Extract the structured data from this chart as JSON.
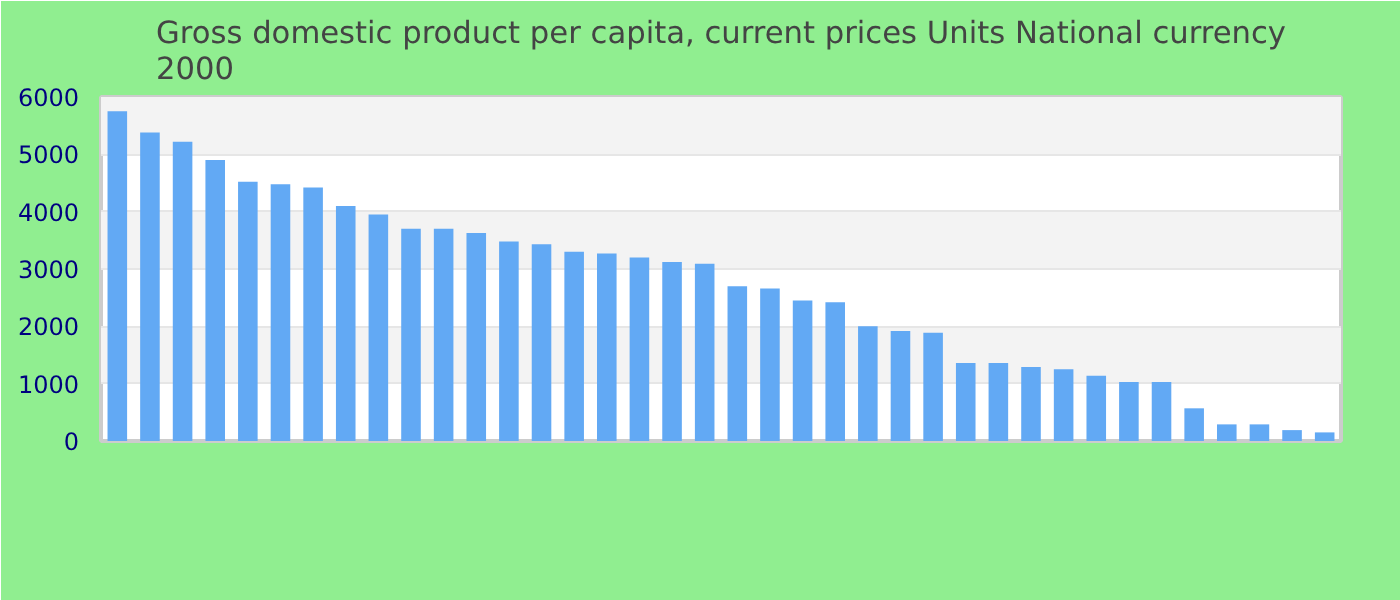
{
  "chart_data": {
    "type": "bar",
    "title": "Gross domestic product per capita, current prices Units National currency\n2000",
    "categories": [
      null,
      null,
      null,
      null,
      null,
      null,
      null,
      null,
      null,
      null,
      null,
      null,
      null,
      null,
      null,
      null,
      null,
      null,
      null,
      null,
      null,
      null,
      null,
      null,
      null,
      null,
      null,
      null,
      null,
      null,
      null,
      null,
      null,
      null,
      null,
      null,
      null,
      null
    ],
    "values": [
      5750,
      5380,
      5220,
      4900,
      4520,
      4480,
      4420,
      4100,
      3950,
      3700,
      3700,
      3630,
      3480,
      3430,
      3300,
      3270,
      3200,
      3120,
      3090,
      2700,
      2660,
      2450,
      2420,
      2000,
      1920,
      1890,
      1360,
      1360,
      1290,
      1250,
      1140,
      1030,
      1030,
      570,
      290,
      290,
      190,
      150
    ],
    "color": "#62a9f4",
    "ylim": [
      0,
      6000
    ],
    "yticks": [
      0,
      1000,
      2000,
      3000,
      4000,
      5000,
      6000
    ],
    "grid": "y",
    "tick_labels": "y"
  }
}
